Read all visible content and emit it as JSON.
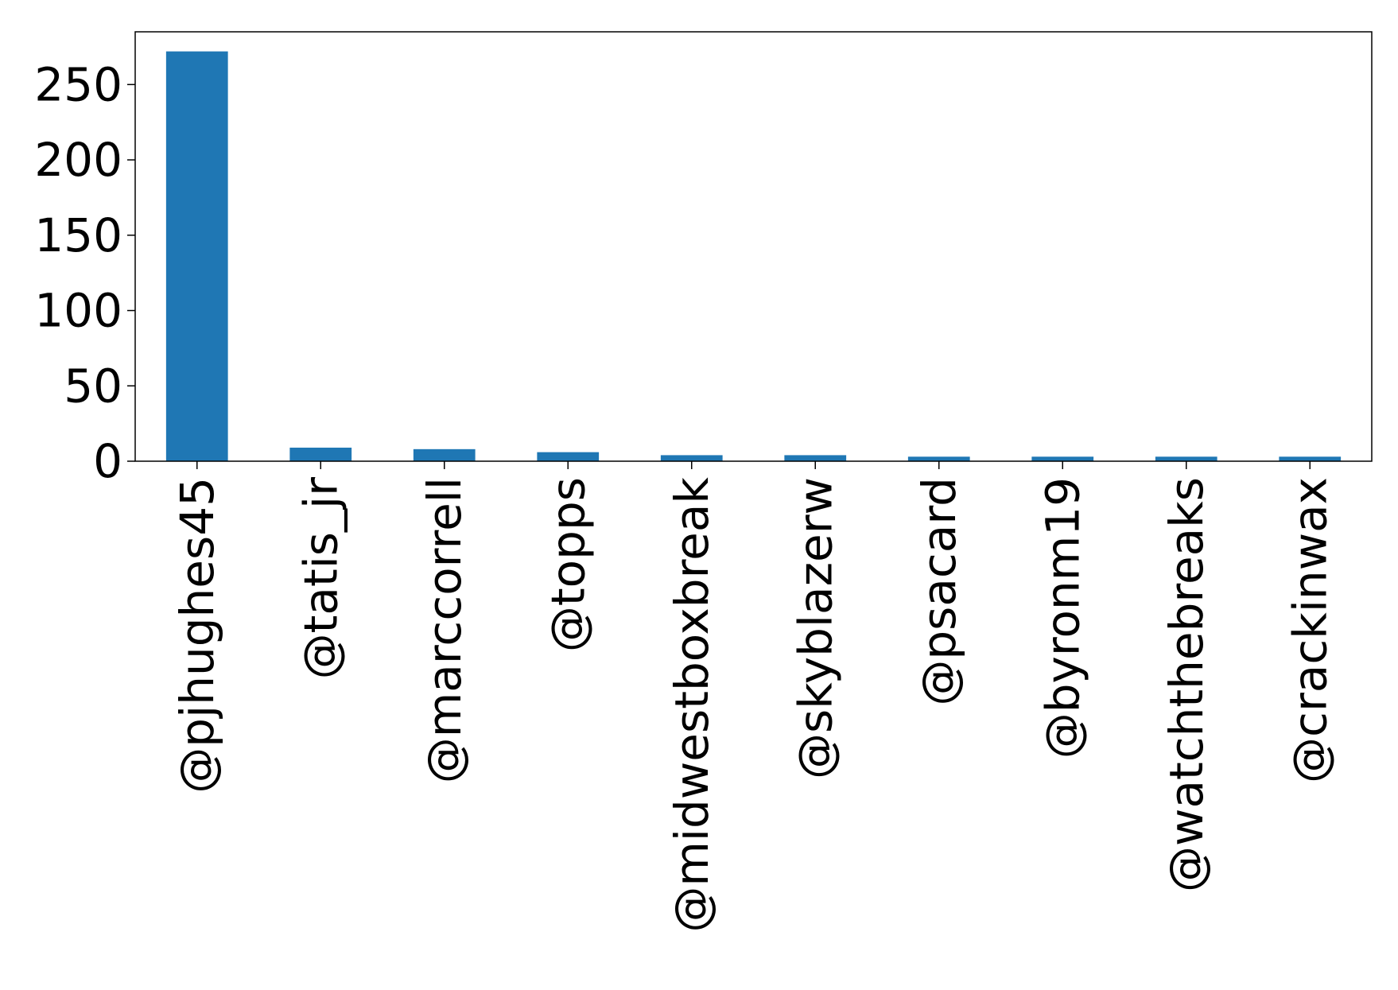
{
  "chart_data": {
    "type": "bar",
    "title": "",
    "xlabel": "",
    "ylabel": "",
    "categories": [
      "@pjhughes45",
      "@tatis_jr",
      "@marccorrell",
      "@topps",
      "@midwestboxbreak",
      "@skyblazerw",
      "@psacard",
      "@byronm19",
      "@watchthebreaks",
      "@crackinwax"
    ],
    "values": [
      272,
      9,
      8,
      6,
      4,
      4,
      3,
      3,
      3,
      3
    ],
    "ylim": [
      0,
      285
    ],
    "yticks": [
      0,
      50,
      100,
      150,
      200,
      250
    ],
    "ytick_labels": [
      "0",
      "50",
      "100",
      "150",
      "200",
      "250"
    ],
    "grid": false,
    "legend": "none",
    "bar_color": "#1f77b4"
  }
}
